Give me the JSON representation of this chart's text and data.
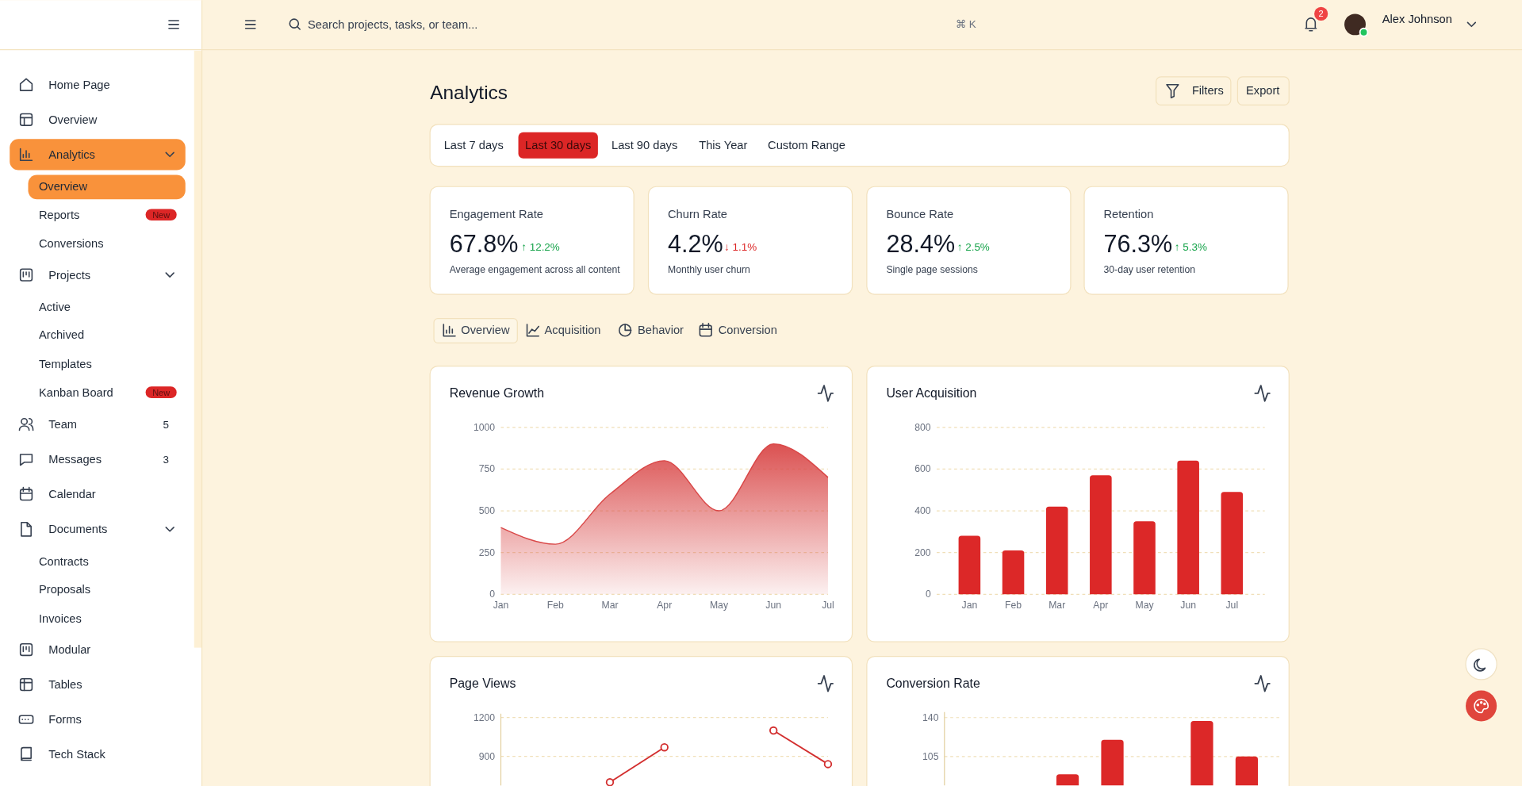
{
  "chart_data": [
    {
      "type": "other",
      "title": "Analytics",
      "annotations": [
        "Home Page",
        "Overview",
        "Analytics",
        "Overview",
        "Reports",
        "New",
        "Conversions",
        "Projects",
        "Active",
        "Archived",
        "Templates",
        "Kanban Board",
        "New",
        "Team",
        "5",
        "Messages",
        "3",
        "Calendar",
        "Documents",
        "Contracts",
        "Proposals",
        "Invoices",
        "Modular",
        "Tables",
        "Forms",
        "Tech Stack",
        "Search projects, tasks, or team...",
        "⌘ K",
        "2",
        "Alex Johnson",
        "Filters",
        "Export",
        "Last 7 days",
        "Last 30 days",
        "Last 90 days",
        "This Year",
        "Custom Range",
        "Engagement Rate",
        "67.8%",
        "↑ 12.2%",
        "Average engagement across all content",
        "Churn Rate",
        "4.2%",
        "↓ 1.1%",
        "Monthly user churn",
        "Bounce Rate",
        "28.4%",
        "↑ 2.5%",
        "Single page sessions",
        "Retention",
        "76.3%",
        "↑ 5.3%",
        "30-day user retention",
        "Overview",
        "Acquisition",
        "Behavior",
        "Conversion"
      ]
    },
    {
      "type": "area",
      "title": "Revenue Growth",
      "categories": [
        "Jan",
        "Feb",
        "Mar",
        "Apr",
        "May",
        "Jun",
        "Jul"
      ],
      "values": [
        400,
        300,
        600,
        800,
        500,
        900,
        700
      ],
      "color": "#d94848",
      "ylim": [
        0,
        1000
      ],
      "yticks": [
        0,
        250,
        500,
        750,
        1000
      ],
      "grid": "y"
    },
    {
      "type": "bar",
      "title": "User Acquisition",
      "categories": [
        "Jan",
        "Feb",
        "Mar",
        "Apr",
        "May",
        "Jun",
        "Jul"
      ],
      "values": [
        280,
        210,
        420,
        570,
        350,
        640,
        490
      ],
      "color": "#dc2828",
      "ylim": [
        0,
        800
      ],
      "yticks": [
        0,
        200,
        400,
        600,
        800
      ],
      "grid": "y"
    },
    {
      "type": "line",
      "title": "Page Views",
      "categories": [
        null,
        null,
        null,
        null,
        null,
        null,
        null
      ],
      "values": [
        null,
        null,
        700,
        970,
        null,
        1100,
        840
      ],
      "color": "#d32f2f",
      "marker": "circle",
      "ylim": [
        675,
        1230
      ],
      "yticks": [
        900,
        1200
      ],
      "grid": "y"
    },
    {
      "type": "bar",
      "title": "Conversion Rate",
      "categories": [
        null,
        null,
        null,
        null,
        null,
        null,
        null
      ],
      "values": [
        null,
        null,
        89,
        120,
        null,
        137,
        105
      ],
      "color": "#dc2828",
      "ylim": [
        79,
        145
      ],
      "yticks": [
        105,
        140
      ],
      "grid": "y"
    }
  ]
}
